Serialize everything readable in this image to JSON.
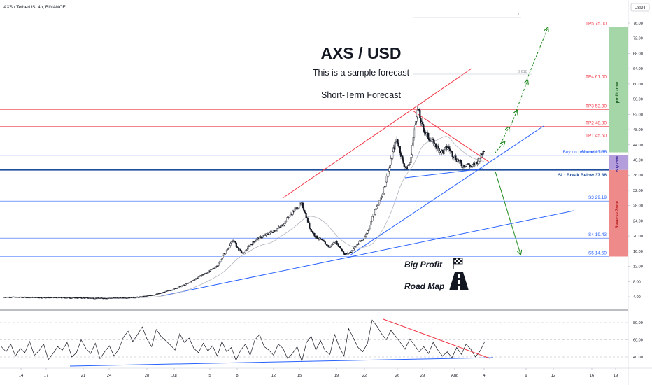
{
  "header": {
    "symbol_line": "AXS / TetherUS, 4h, BINANCE",
    "currency": "USDT"
  },
  "colors": {
    "candle": "#131722",
    "resistance": "#f23645",
    "support": "#2962ff",
    "arrow_up": "#1e8a1e",
    "arrow_down": "#1e8a1e",
    "profit_zone": "#a5d6a7",
    "buy_zone": "#b39ddb",
    "reverse_zone": "#ef8a8a",
    "ma": "#b2b5be"
  },
  "annotations": {
    "title": "AXS / USD",
    "subtitle": "This is a sample forecast",
    "forecast": "Short-Term Forecast",
    "big_profit": "Big Profit",
    "road_map": "Road Map",
    "buy_note": "Buy on price relection",
    "fib_1": "1",
    "fib_618": "0.618"
  },
  "zones": {
    "profit": "profit zone",
    "buy": "Buy Zone",
    "reverse": "Reverse Zone"
  },
  "chart_data": [
    {
      "type": "candlestick",
      "x_labels": [
        "14",
        "17",
        "21",
        "24",
        "28",
        "Jul",
        "5",
        "8",
        "12",
        "15",
        "19",
        "22",
        "26",
        "29",
        "Aug",
        "4",
        "9",
        "12",
        "16",
        "19"
      ],
      "y_axis": {
        "scale": "linear",
        "min": 0,
        "max": 78,
        "ticks": [
          4,
          8,
          12,
          16,
          20,
          24,
          28,
          32,
          36,
          40,
          44,
          48,
          52,
          56,
          60,
          64,
          68,
          72,
          76
        ]
      },
      "series": [
        {
          "anchors_close": [
            [
              0,
              3.9
            ],
            [
              4,
              3.8
            ],
            [
              8,
              3.7
            ],
            [
              10,
              3.6
            ],
            [
              12,
              3.7
            ],
            [
              14,
              3.9
            ],
            [
              15,
              4.3
            ],
            [
              16,
              4.8
            ],
            [
              17,
              5.6
            ],
            [
              18,
              6.5
            ],
            [
              19,
              7.6
            ],
            [
              20,
              9.2
            ],
            [
              21,
              10.5
            ],
            [
              22,
              12.3
            ],
            [
              22.6,
              15.1
            ],
            [
              23.2,
              17.5
            ],
            [
              23.6,
              19.0
            ],
            [
              24,
              16.8
            ],
            [
              24.6,
              15.2
            ],
            [
              25.2,
              17.4
            ],
            [
              26,
              19.2
            ],
            [
              27,
              20.4
            ],
            [
              28,
              21.8
            ],
            [
              28.6,
              22.8
            ],
            [
              29.2,
              25.0
            ],
            [
              29.7,
              26.4
            ],
            [
              30.2,
              27.8
            ],
            [
              30.6,
              28.3
            ],
            [
              30.9,
              26.3
            ],
            [
              31.4,
              22.1
            ],
            [
              32,
              19.8
            ],
            [
              32.8,
              18.5
            ],
            [
              33.4,
              17.0
            ],
            [
              34,
              18.6
            ],
            [
              34.6,
              16.6
            ],
            [
              35,
              15.1
            ],
            [
              35.5,
              15.6
            ],
            [
              36.2,
              17.6
            ],
            [
              37,
              19.6
            ],
            [
              37.4,
              21.8
            ],
            [
              37.8,
              24.9
            ],
            [
              38.2,
              27.3
            ],
            [
              38.6,
              29.5
            ],
            [
              39,
              32.4
            ],
            [
              39.3,
              35.8
            ],
            [
              39.6,
              38.6
            ],
            [
              39.9,
              42.3
            ],
            [
              40.3,
              45.6
            ],
            [
              40.6,
              42.8
            ],
            [
              40.9,
              39.6
            ],
            [
              41.3,
              37.6
            ],
            [
              41.7,
              39.5
            ],
            [
              42.0,
              46.0
            ],
            [
              42.3,
              52.0
            ],
            [
              42.5,
              53.3
            ],
            [
              42.8,
              49.5
            ],
            [
              43.2,
              47.3
            ],
            [
              43.6,
              45.7
            ],
            [
              44.0,
              44.6
            ],
            [
              44.5,
              43.0
            ],
            [
              45.0,
              42.0
            ],
            [
              45.5,
              43.5
            ],
            [
              46.0,
              41.5
            ],
            [
              46.5,
              40.0
            ],
            [
              47.0,
              38.5
            ],
            [
              47.5,
              39.0
            ],
            [
              48.0,
              38.2
            ],
            [
              48.5,
              39.5
            ],
            [
              49.0,
              41.5
            ],
            [
              49.3,
              43.2
            ]
          ]
        }
      ],
      "levels": [
        {
          "label": "TP5 75.00",
          "value": 75.0,
          "color": "#f23645"
        },
        {
          "label": "TP4 61.00",
          "value": 61.0,
          "color": "#f23645"
        },
        {
          "label": "TP3 53.30",
          "value": 53.3,
          "color": "#f23645"
        },
        {
          "label": "TP2 48.80",
          "value": 48.8,
          "color": "#f23645"
        },
        {
          "label": "TP1 45.50",
          "value": 45.5,
          "color": "#f23645"
        },
        {
          "label": "Above 41.28",
          "value": 41.28,
          "color": "#2962ff"
        },
        {
          "label": "SL: Break Below 37.36",
          "value": 37.36,
          "color": "#1f4e9c"
        },
        {
          "label": "S3 29.19",
          "value": 29.19,
          "color": "#2962ff"
        },
        {
          "label": "S4 19.43",
          "value": 19.43,
          "color": "#2962ff"
        },
        {
          "label": "S5 14.59",
          "value": 14.59,
          "color": "#2962ff"
        }
      ]
    },
    {
      "type": "line",
      "y_axis": {
        "ticks": [
          40,
          60,
          80
        ],
        "min": 25,
        "max": 90
      },
      "x_labels": [
        "14",
        "17",
        "21",
        "24",
        "28",
        "Jul",
        "5",
        "8",
        "12",
        "15",
        "19",
        "22",
        "26",
        "29",
        "Aug",
        "4",
        "9",
        "12",
        "16",
        "19"
      ],
      "series": [
        {
          "values": [
            52,
            46,
            55,
            41,
            50,
            45,
            58,
            42,
            47,
            55,
            37,
            44,
            52,
            48,
            57,
            40,
            45,
            60,
            50,
            44,
            56,
            38,
            46,
            53,
            41,
            49,
            63,
            70,
            58,
            66,
            75,
            61,
            52,
            72,
            64,
            59,
            54,
            48,
            67,
            57,
            62,
            50,
            45,
            56,
            47,
            53,
            41,
            58,
            46,
            51,
            36,
            48,
            55,
            42,
            60,
            66,
            52,
            48,
            42,
            55,
            50,
            38,
            44,
            52,
            35,
            57,
            64,
            48,
            59,
            47,
            43,
            66,
            52,
            41,
            73,
            62,
            51,
            46,
            56,
            83,
            76,
            67,
            60,
            71,
            64,
            57,
            49,
            61,
            54,
            46,
            52,
            44,
            57,
            48,
            41,
            46,
            39,
            51,
            43,
            55,
            49,
            40,
            47,
            58
          ]
        }
      ]
    }
  ]
}
